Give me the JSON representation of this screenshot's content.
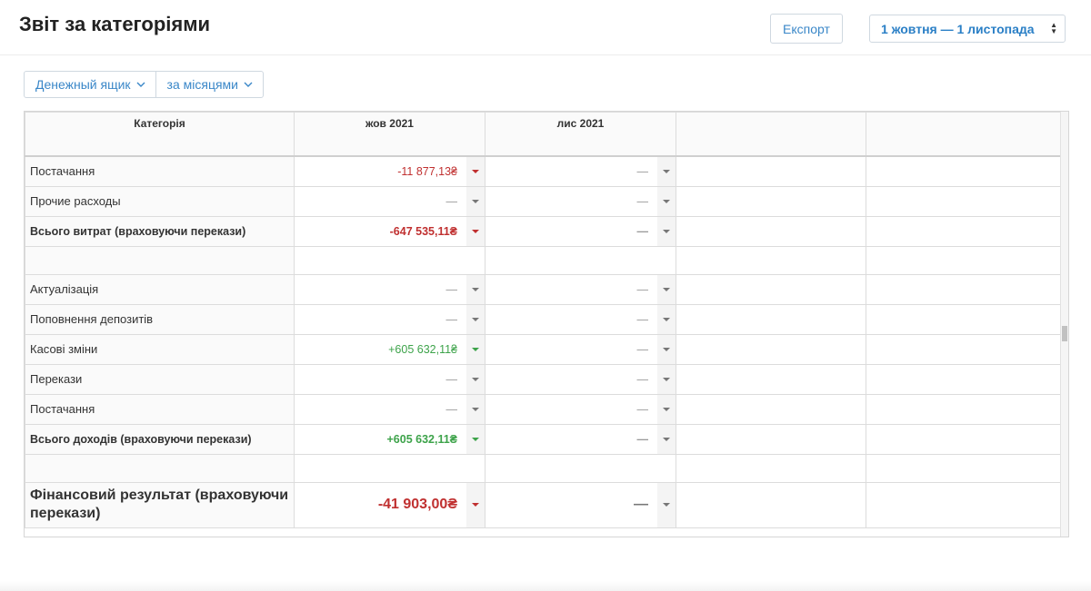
{
  "header": {
    "title": "Звіт за категоріями",
    "export_label": "Експорт",
    "date_range": "1 жовтня — 1 листопада"
  },
  "filters": {
    "account": "Денежный ящик",
    "period": "за місяцями"
  },
  "table": {
    "columns": [
      "Категорія",
      "жов 2021",
      "лис 2021",
      "",
      ""
    ],
    "rows": [
      {
        "label": "Постачання",
        "v1": "-11 877,13₴",
        "v2": "—"
      },
      {
        "label": "Прочие расходы",
        "v1": "—",
        "v2": "—"
      },
      {
        "label": "Всього витрат (враховуючи перекази)",
        "v1": "-647 535,11₴",
        "v2": "—"
      },
      {
        "label": "Актуалізація",
        "v1": "—",
        "v2": "—"
      },
      {
        "label": "Поповнення депозитів",
        "v1": "—",
        "v2": "—"
      },
      {
        "label": "Касові зміни",
        "v1": "+605 632,11₴",
        "v2": "—"
      },
      {
        "label": "Перекази",
        "v1": "—",
        "v2": "—"
      },
      {
        "label": "Постачання",
        "v1": "—",
        "v2": "—"
      },
      {
        "label": "Всього доходів (враховуючи перекази)",
        "v1": "+605 632,11₴",
        "v2": "—"
      },
      {
        "label": "Фінансовий результат (враховуючи перекази)",
        "v1": "-41 903,00₴",
        "v2": "—"
      }
    ]
  },
  "colors": {
    "accent": "#3a87c8",
    "negative": "#c03030",
    "positive": "#3da34a"
  }
}
